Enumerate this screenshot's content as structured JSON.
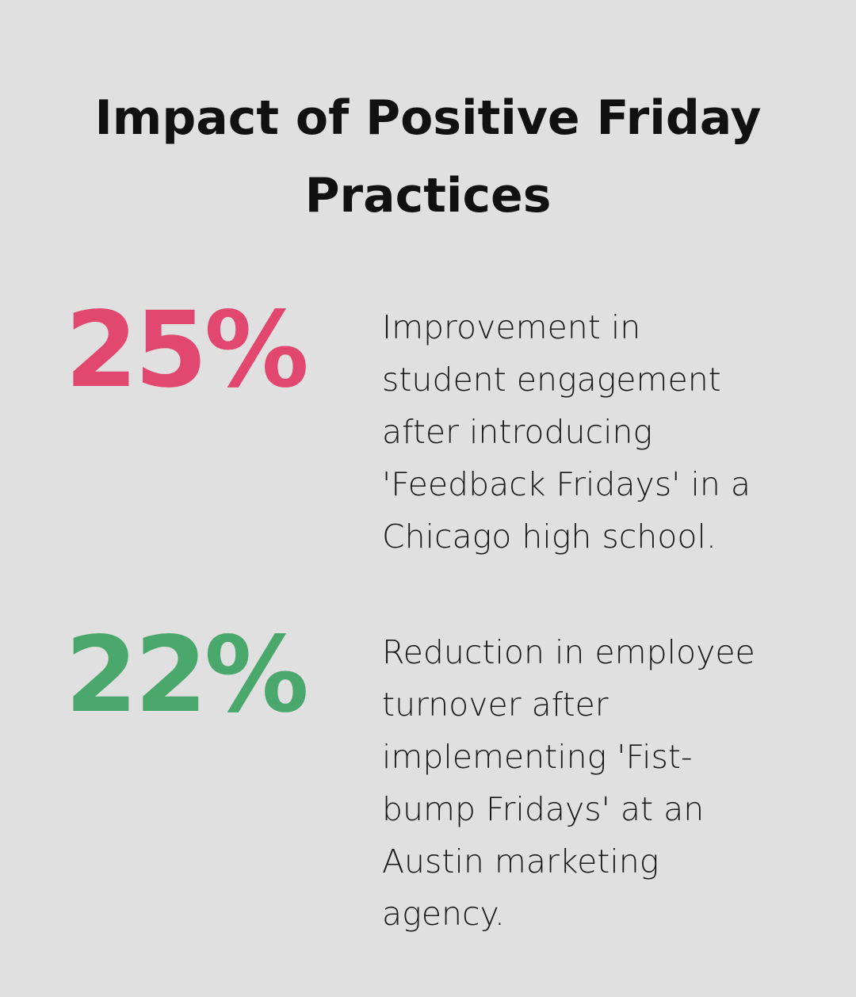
{
  "header": {
    "title_lines": [
      "Impact of Positive Friday",
      "Practices"
    ]
  },
  "stats": [
    {
      "value": "25%",
      "color": "#e2476f",
      "description_lines": [
        "Improvement in",
        "student engagement",
        "after introducing",
        "'Feedback Fridays' in a",
        "Chicago high school."
      ]
    },
    {
      "value": "22%",
      "color": "#4aa86c",
      "description_lines": [
        "Reduction in employee",
        "turnover after",
        "implementing 'Fist-",
        "bump Fridays' at an",
        "Austin marketing",
        "agency."
      ]
    }
  ]
}
